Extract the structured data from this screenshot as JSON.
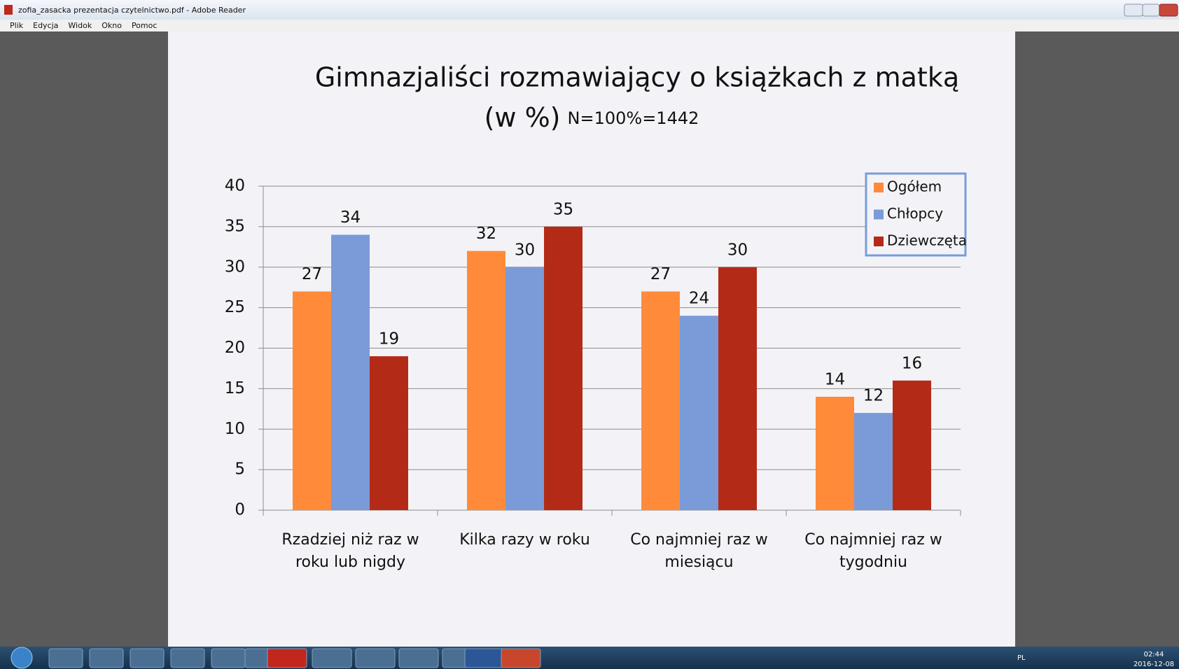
{
  "window": {
    "title": "zofia_zasacka prezentacja czytelnictwo.pdf - Adobe Reader",
    "menu": [
      "Plik",
      "Edycja",
      "Widok",
      "Okno",
      "Pomoc"
    ]
  },
  "chart_data": {
    "type": "bar",
    "title": "Gimnazjaliści rozmawiający o książkach z matką",
    "title_unit": "(w %)",
    "subtitle": "N=100%=1442",
    "categories": [
      "Rzadziej niż raz w roku lub nigdy",
      "Kilka razy w roku",
      "Co najmniej raz w miesiącu",
      "Co najmniej raz w tygodniu"
    ],
    "series": [
      {
        "name": "Ogółem",
        "color": "#ff8b3a",
        "values": [
          27,
          32,
          27,
          14
        ]
      },
      {
        "name": "Chłopcy",
        "color": "#7a9bd8",
        "values": [
          34,
          30,
          24,
          12
        ]
      },
      {
        "name": "Dziewczęta",
        "color": "#b32b17",
        "values": [
          19,
          35,
          30,
          16
        ]
      }
    ],
    "ylim": [
      0,
      40
    ],
    "yticks": [
      0,
      5,
      10,
      15,
      20,
      25,
      30,
      35,
      40
    ],
    "grid": true,
    "legend": "top-right"
  },
  "taskbar": {
    "language": "PL",
    "time": "02:44",
    "date": "2016-12-08"
  }
}
